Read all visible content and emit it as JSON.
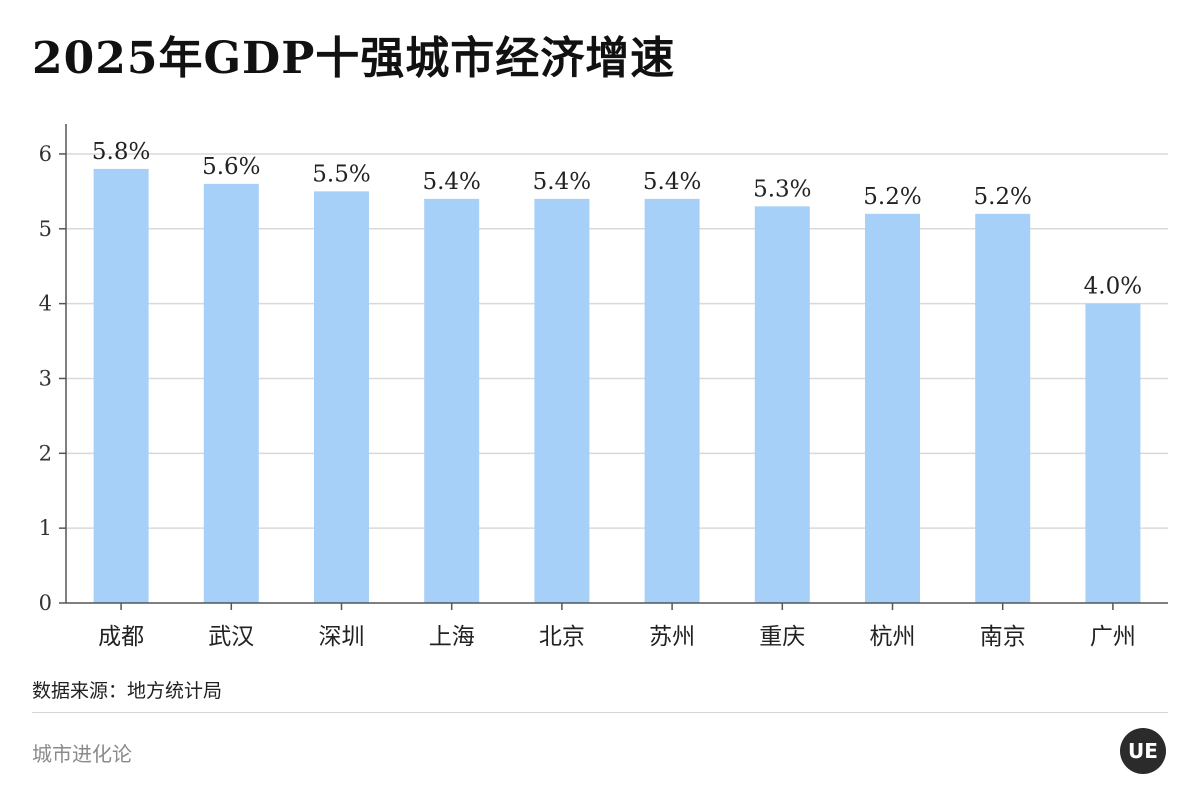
{
  "header": {
    "title": "2025年GDP十强城市经济增速"
  },
  "footer": {
    "source": "数据来源：地方统计局",
    "brand": "城市进化论",
    "logo_text": "UE"
  },
  "colors": {
    "bar": "#a6d0f7",
    "grid": "#d9d9d9",
    "axis": "#555555"
  },
  "chart_data": {
    "type": "bar",
    "title": "2025年GDP十强城市经济增速",
    "xlabel": "",
    "ylabel": "",
    "categories": [
      "成都",
      "武汉",
      "深圳",
      "上海",
      "北京",
      "苏州",
      "重庆",
      "杭州",
      "南京",
      "广州"
    ],
    "values": [
      5.8,
      5.6,
      5.5,
      5.4,
      5.4,
      5.4,
      5.3,
      5.2,
      5.2,
      4.0
    ],
    "data_labels": [
      "5.8%",
      "5.6%",
      "5.5%",
      "5.4%",
      "5.4%",
      "5.4%",
      "5.3%",
      "5.2%",
      "5.2%",
      "4.0%"
    ],
    "yticks": [
      0,
      1,
      2,
      3,
      4,
      5,
      6
    ],
    "ylim": [
      0,
      6.4
    ],
    "grid": true,
    "legend": "none"
  }
}
